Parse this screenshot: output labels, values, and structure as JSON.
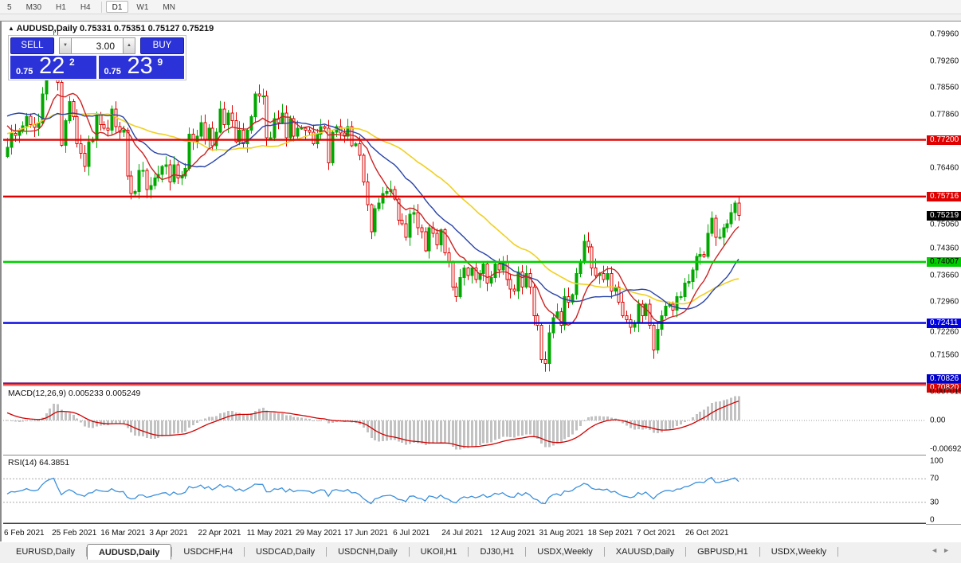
{
  "toolbar": {
    "timeframes": [
      "5",
      "M30",
      "H1",
      "H4",
      "D1",
      "W1",
      "MN"
    ],
    "active": "D1"
  },
  "chart_window": {
    "title": {
      "arrow": "▲",
      "symbol": "AUDUSD,Daily",
      "ohlc": "0.75331 0.75351 0.75127 0.75219"
    },
    "trade_panel": {
      "sell_label": "SELL",
      "buy_label": "BUY",
      "volume": "3.00",
      "spin_down": "▼",
      "spin_up": "▲",
      "sell_price_small": "0.75",
      "sell_price_big": "22",
      "sell_price_sup": "2",
      "buy_price_small": "0.75",
      "buy_price_big": "23",
      "buy_price_sup": "9"
    },
    "macd_label": "MACD(12,26,9)",
    "macd_values": "0.005233 0.005249",
    "rsi_label": "RSI(14)",
    "rsi_value": "64.3851"
  },
  "price_axis": {
    "scale_labels": [
      "0.79960",
      "0.79260",
      "0.78560",
      "0.77860",
      "0.76460",
      "0.75060",
      "0.74360",
      "0.73660",
      "0.72960",
      "0.72260",
      "0.71560"
    ],
    "tags": [
      {
        "text": "0.77200",
        "bg": "#e00000",
        "fg": "#ffffff"
      },
      {
        "text": "0.75716",
        "bg": "#e00000",
        "fg": "#ffffff"
      },
      {
        "text": "0.75219",
        "bg": "#000000",
        "fg": "#ffffff"
      },
      {
        "text": "0.74007",
        "bg": "#00cc00",
        "fg": "#000000"
      },
      {
        "text": "0.72411",
        "bg": "#0000e0",
        "fg": "#ffffff"
      },
      {
        "text": "0.70826",
        "bg": "#0000c8",
        "fg": "#ffffff"
      },
      {
        "text": "0.70820",
        "bg": "#e00000",
        "fg": "#ffffff"
      }
    ],
    "macd_labels": [
      "0.007015",
      "0.00",
      "-0.00692"
    ],
    "rsi_labels": [
      "100",
      "70",
      "30",
      "0"
    ]
  },
  "date_axis": [
    "6 Feb 2021",
    "25 Feb 2021",
    "16 Mar 2021",
    "3 Apr 2021",
    "22 Apr 2021",
    "11 May 2021",
    "29 May 2021",
    "17 Jun 2021",
    "6 Jul 2021",
    "24 Jul 2021",
    "12 Aug 2021",
    "31 Aug 2021",
    "18 Sep 2021",
    "7 Oct 2021",
    "26 Oct 2021"
  ],
  "tab_bar": {
    "tabs": [
      "EURUSD,Daily",
      "AUDUSD,Daily",
      "USDCHF,H4",
      "USDCAD,Daily",
      "USDCNH,Daily",
      "UKOil,H1",
      "DJ30,H1",
      "USDX,Weekly",
      "XAUUSD,Daily",
      "GBPUSD,H1",
      "USDX,Weekly"
    ],
    "active": "AUDUSD,Daily",
    "scroll_left": "◄",
    "scroll_right": "►"
  },
  "colors": {
    "bull": "#00a800",
    "bear": "#de0000",
    "ma_fast": "#cc2222",
    "ma_mid": "#2843a8",
    "ma_slow": "#f0d020",
    "macd_hist": "#c2c2c2",
    "macd_signal": "#d00000",
    "rsi_line": "#3c90dc",
    "trade_blue": "#2b32d8"
  },
  "chart_data": {
    "type": "candlestick",
    "symbol": "AUDUSD",
    "timeframe": "Daily",
    "first_open": 0.7676,
    "closes": [
      0.77,
      0.7737,
      0.7732,
      0.7745,
      0.7757,
      0.7782,
      0.776,
      0.7752,
      0.7764,
      0.784,
      0.791,
      0.796,
      0.799,
      0.787,
      0.7706,
      0.777,
      0.782,
      0.778,
      0.771,
      0.7685,
      0.765,
      0.7715,
      0.772,
      0.7785,
      0.776,
      0.775,
      0.7745,
      0.78,
      0.7755,
      0.774,
      0.7745,
      0.7625,
      0.758,
      0.7585,
      0.764,
      0.764,
      0.759,
      0.76,
      0.762,
      0.763,
      0.765,
      0.7655,
      0.761,
      0.7655,
      0.762,
      0.7625,
      0.7645,
      0.7735,
      0.7715,
      0.773,
      0.7765,
      0.772,
      0.775,
      0.7705,
      0.774,
      0.78,
      0.776,
      0.779,
      0.777,
      0.7715,
      0.7745,
      0.771,
      0.7745,
      0.778,
      0.784,
      0.7835,
      0.7835,
      0.7725,
      0.7725,
      0.7775,
      0.7765,
      0.779,
      0.7725,
      0.7775,
      0.773,
      0.775,
      0.775,
      0.7745,
      0.774,
      0.771,
      0.7735,
      0.7755,
      0.775,
      0.766,
      0.774,
      0.7755,
      0.7738,
      0.773,
      0.7755,
      0.7705,
      0.771,
      0.768,
      0.761,
      0.755,
      0.748,
      0.754,
      0.7555,
      0.758,
      0.7585,
      0.759,
      0.7565,
      0.751,
      0.75,
      0.7465,
      0.7525,
      0.753,
      0.749,
      0.748,
      0.743,
      0.749,
      0.7475,
      0.7445,
      0.7485,
      0.7425,
      0.74,
      0.7335,
      0.731,
      0.736,
      0.7385,
      0.7365,
      0.7385,
      0.7355,
      0.737,
      0.7395,
      0.7345,
      0.736,
      0.7395,
      0.738,
      0.74,
      0.7355,
      0.733,
      0.7325,
      0.7375,
      0.7335,
      0.737,
      0.7335,
      0.726,
      0.7235,
      0.7145,
      0.7135,
      0.7215,
      0.7255,
      0.727,
      0.7235,
      0.731,
      0.7295,
      0.7315,
      0.737,
      0.74,
      0.7455,
      0.744,
      0.7385,
      0.7365,
      0.737,
      0.7355,
      0.737,
      0.7325,
      0.7335,
      0.7295,
      0.726,
      0.725,
      0.723,
      0.724,
      0.729,
      0.726,
      0.729,
      0.7235,
      0.717,
      0.7225,
      0.726,
      0.7285,
      0.729,
      0.7275,
      0.731,
      0.731,
      0.7345,
      0.735,
      0.738,
      0.7415,
      0.742,
      0.7415,
      0.7475,
      0.7515,
      0.7465,
      0.7465,
      0.749,
      0.75,
      0.753,
      0.7555,
      0.7522
    ],
    "levels": [
      {
        "price": 0.772,
        "color": "#e00000",
        "width": 2.4
      },
      {
        "price": 0.75716,
        "color": "#e00000",
        "width": 2.4
      },
      {
        "price": 0.74007,
        "color": "#00d000",
        "width": 2.6
      },
      {
        "price": 0.72411,
        "color": "#0000e0",
        "width": 2.4
      },
      {
        "price": 0.70826,
        "color": "#0000b0",
        "width": 2.6
      },
      {
        "price": 0.7082,
        "color": "#e00000",
        "width": 2.4
      }
    ],
    "indicators": {
      "ma_fast_period": 10,
      "ma_mid_period": 21,
      "ma_slow_period": 40,
      "macd": [
        12,
        26,
        9
      ],
      "rsi_period": 14,
      "macd_range": [
        -0.00692,
        0.007015
      ],
      "rsi_range": [
        0,
        100
      ],
      "rsi_levels": [
        70,
        30
      ]
    }
  }
}
